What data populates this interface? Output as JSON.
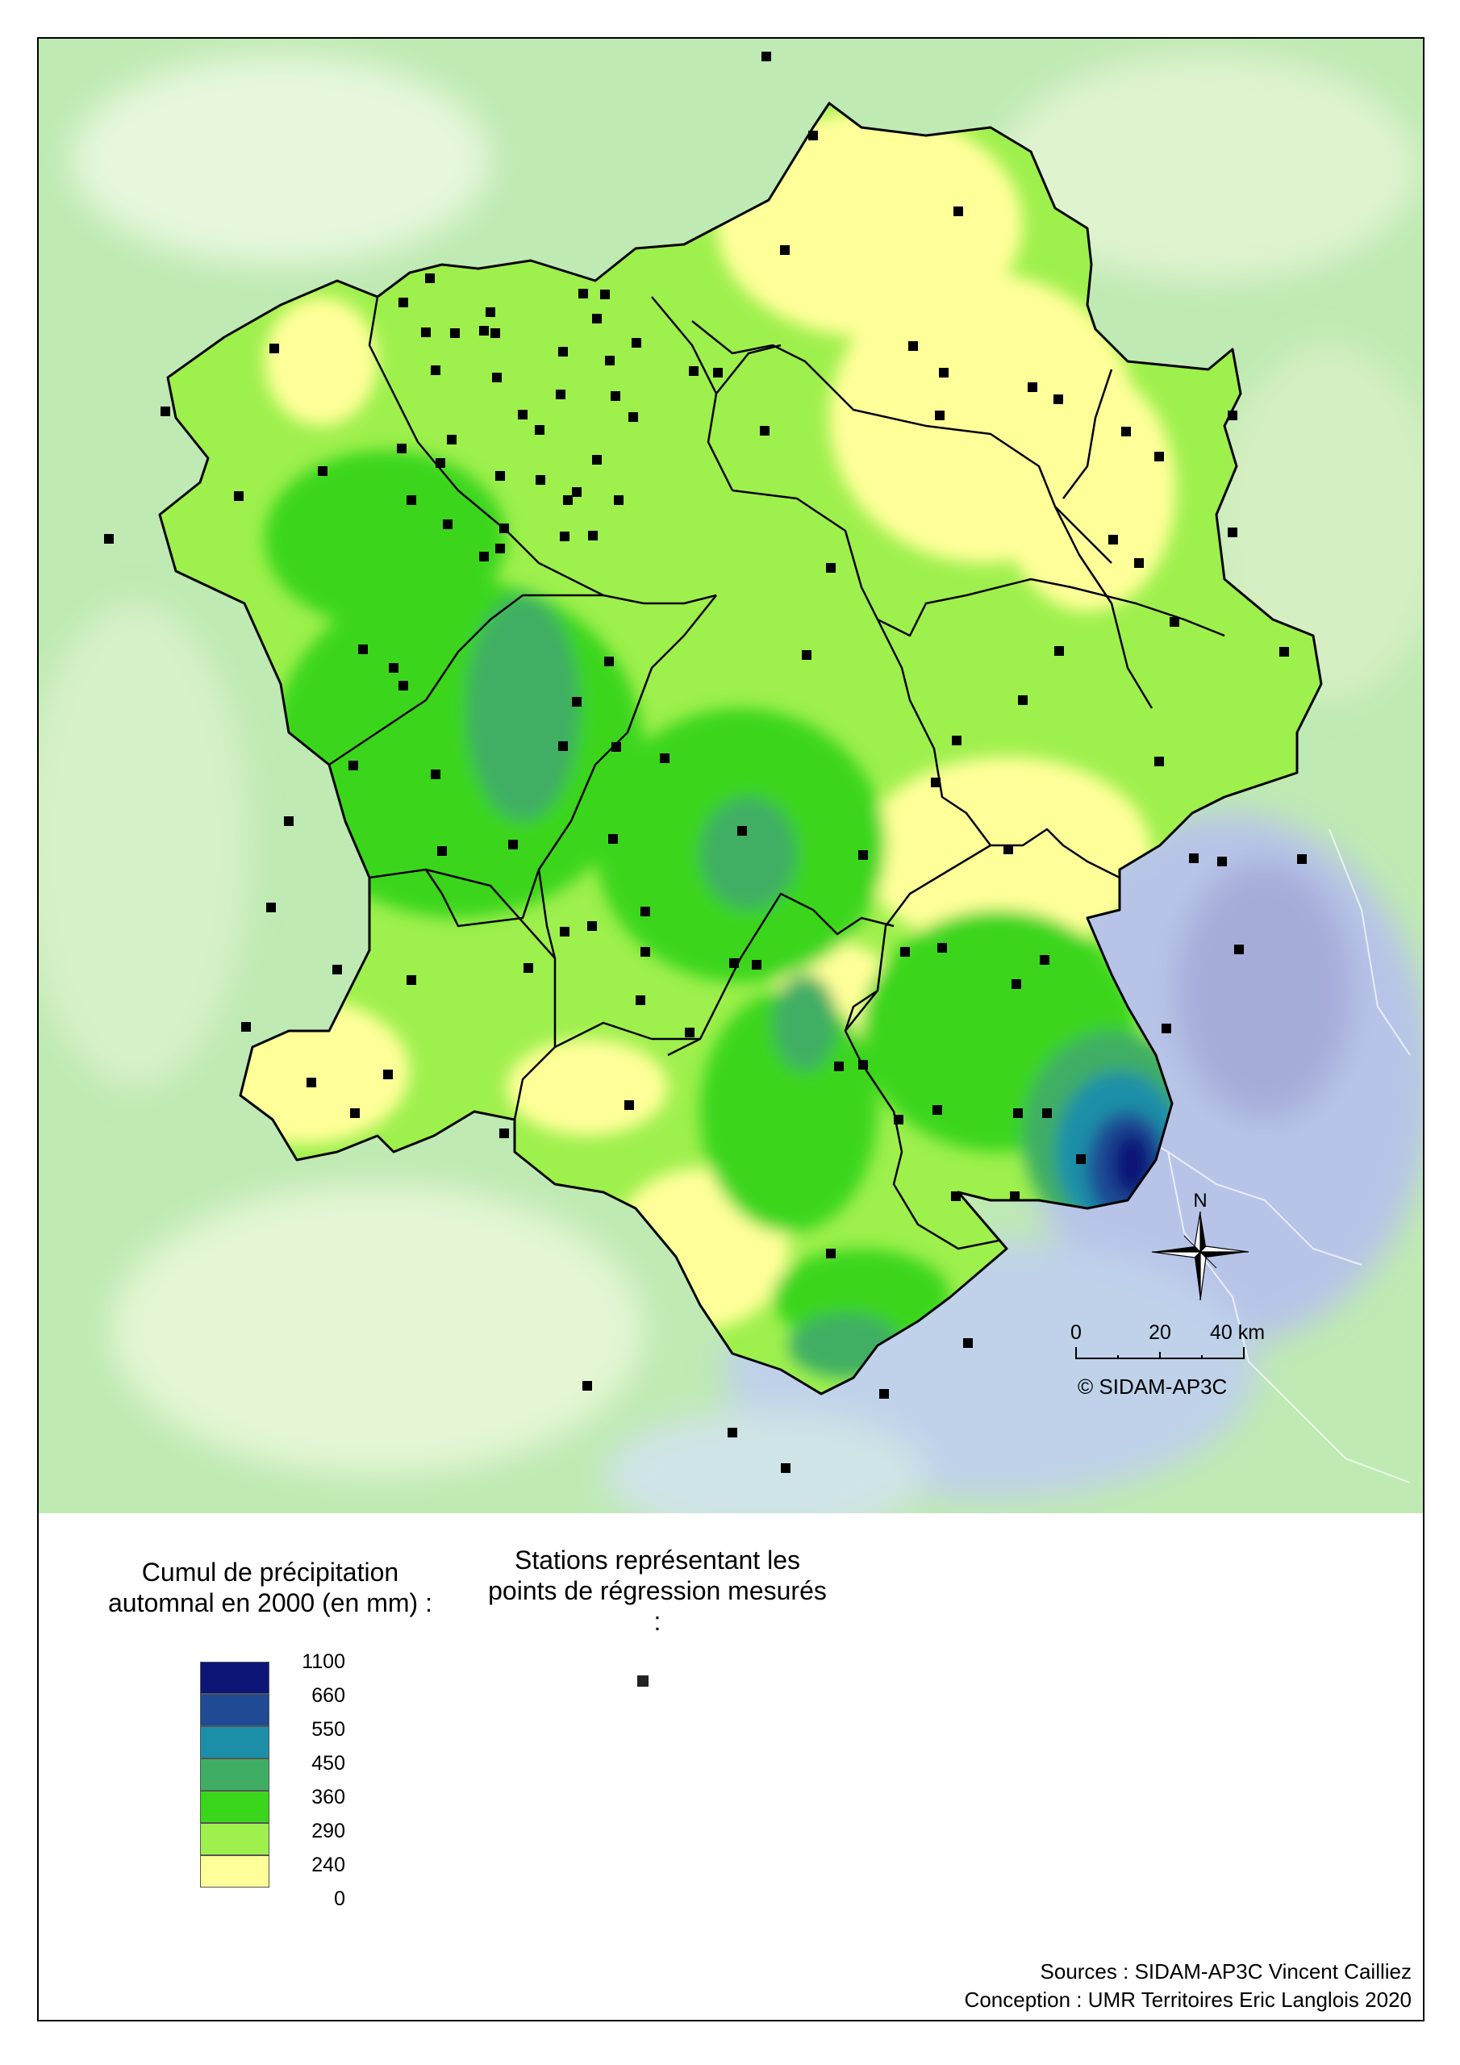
{
  "map": {
    "scale_bar": {
      "ticks": [
        "0",
        "20",
        "40 km"
      ]
    },
    "north_label": "N",
    "copyright": "© SIDAM-AP3C",
    "colors": {
      "0": "#ffff99",
      "240": "#9ef04d",
      "290": "#3ad61c",
      "360": "#3fae64",
      "450": "#1c8fa8",
      "550": "#1f4a94",
      "660": "#0d1577",
      "outside_background": "#bfeab3",
      "outside_wet": "#b7c4e8",
      "border": "#000000",
      "station": "#000000"
    }
  },
  "legend": {
    "precip_title": "Cumul de précipitation automnal en 2000 (en mm) :",
    "stations_title": "Stations représentant les points de régression mesurés :",
    "classes": [
      {
        "label": "1100",
        "color": "#0d1577"
      },
      {
        "label": "660",
        "color": "#1f4a94"
      },
      {
        "label": "550",
        "color": "#1c8fa8"
      },
      {
        "label": "450",
        "color": "#3fae64"
      },
      {
        "label": "360",
        "color": "#3ad61c"
      },
      {
        "label": "290",
        "color": "#9ef04d"
      },
      {
        "label": "240",
        "color": "#ffff99"
      },
      {
        "label": "0",
        "color": ""
      }
    ]
  },
  "credits": {
    "line1": "Sources : SIDAM-AP3C Vincent Cailliez",
    "line2": "Conception : UMR Territoires Eric Langlois  2020"
  }
}
